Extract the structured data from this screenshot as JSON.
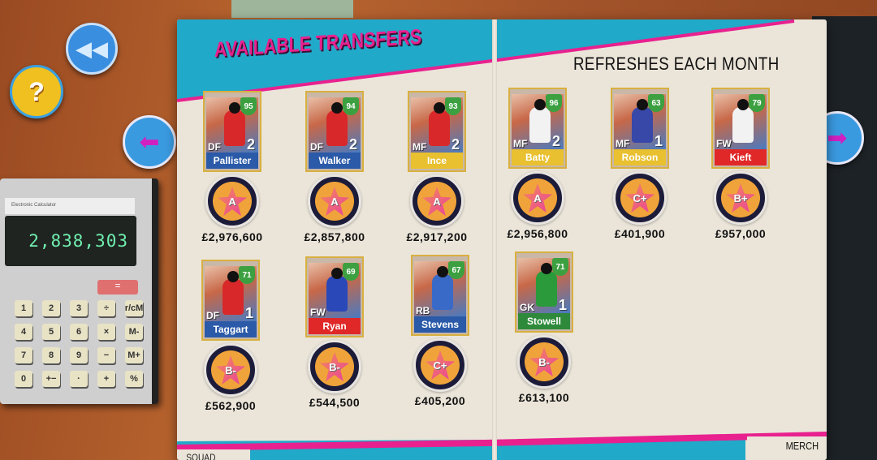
{
  "header": {
    "title": "AVAILABLE TRANSFERS",
    "subtitle": "REFRESHES EACH MONTH"
  },
  "nav": {
    "rewind_icon": "rewind-icon",
    "help_label": "?",
    "prev_icon": "arrow-left-icon",
    "next_icon": "arrow-right-icon"
  },
  "calculator": {
    "label": "Electronic Calculator",
    "display": "2,838,303",
    "equals": "=",
    "keys": [
      "1",
      "2",
      "3",
      "÷",
      "r/cM",
      "4",
      "5",
      "6",
      "×",
      "M-",
      "7",
      "8",
      "9",
      "−",
      "M+",
      "0",
      "+−",
      "·",
      "+",
      "%"
    ]
  },
  "tabs": {
    "left": "SQUAD",
    "right": "MERCH"
  },
  "colors": {
    "accent_pink": "#e8218f",
    "teal": "#21a9c9",
    "blue_strip": "#2a5aa8",
    "yellow_strip": "#e8c030",
    "red_strip": "#e02828",
    "green_strip": "#2e8a3a"
  },
  "players": [
    {
      "name": "Pallister",
      "position": "DF",
      "rating": "95",
      "level": "2",
      "grade": "A",
      "price": "£2,976,600",
      "strip": "#2a5aa8",
      "kit": "#d8282a"
    },
    {
      "name": "Walker",
      "position": "DF",
      "rating": "94",
      "level": "2",
      "grade": "A",
      "price": "£2,857,800",
      "strip": "#2a5aa8",
      "kit": "#d8282a"
    },
    {
      "name": "Ince",
      "position": "MF",
      "rating": "93",
      "level": "2",
      "grade": "A",
      "price": "£2,917,200",
      "strip": "#e8c030",
      "kit": "#d8282a"
    },
    {
      "name": "Batty",
      "position": "MF",
      "rating": "96",
      "level": "2",
      "grade": "A",
      "price": "£2,956,800",
      "strip": "#e8c030",
      "kit": "#f2f2f2"
    },
    {
      "name": "Robson",
      "position": "MF",
      "rating": "63",
      "level": "1",
      "grade": "C+",
      "price": "£401,900",
      "strip": "#e8c030",
      "kit": "#3848a8"
    },
    {
      "name": "Kieft",
      "position": "FW",
      "rating": "79",
      "level": "",
      "grade": "B+",
      "price": "£957,000",
      "strip": "#e02828",
      "kit": "#f2f2f2"
    },
    {
      "name": "Taggart",
      "position": "DF",
      "rating": "71",
      "level": "1",
      "grade": "B-",
      "price": "£562,900",
      "strip": "#2a5aa8",
      "kit": "#d8282a"
    },
    {
      "name": "Ryan",
      "position": "FW",
      "rating": "69",
      "level": "",
      "grade": "B-",
      "price": "£544,500",
      "strip": "#e02828",
      "kit": "#2a48b8"
    },
    {
      "name": "Stevens",
      "position": "RB",
      "rating": "67",
      "level": "",
      "grade": "C+",
      "price": "£405,200",
      "strip": "#2a5aa8",
      "kit": "#3a6ac8"
    },
    {
      "name": "Stowell",
      "position": "GK",
      "rating": "71",
      "level": "1",
      "grade": "B-",
      "price": "£613,100",
      "strip": "#2e8a3a",
      "kit": "#2a9a3a"
    }
  ]
}
